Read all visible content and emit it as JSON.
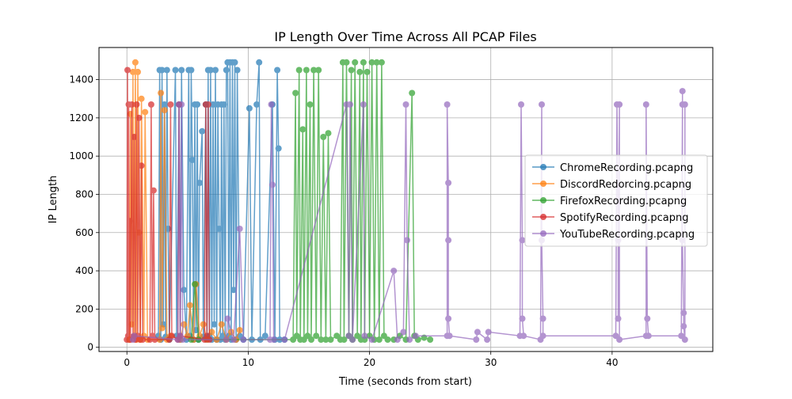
{
  "chart_data": {
    "type": "line",
    "title": "IP Length Over Time Across All PCAP Files",
    "xlabel": "Time (seconds from start)",
    "ylabel": "IP Length",
    "xlim": [
      -2.3,
      48.3
    ],
    "ylim": [
      -22,
      1568
    ],
    "x_ticks": [
      0,
      10,
      20,
      30,
      40
    ],
    "x_tick_labels": [
      "0",
      "10",
      "20",
      "30",
      "40"
    ],
    "y_ticks": [
      0,
      200,
      400,
      600,
      800,
      1000,
      1200,
      1400
    ],
    "y_tick_labels": [
      "0",
      "200",
      "400",
      "600",
      "800",
      "1000",
      "1200",
      "1400"
    ],
    "grid": true,
    "legend_position": "center-right",
    "series": [
      {
        "name": "ChromeRecording.pcapng",
        "color": "#1f77b4",
        "points": [
          [
            2.6,
            60
          ],
          [
            2.7,
            1450
          ],
          [
            2.8,
            40
          ],
          [
            2.9,
            1450
          ],
          [
            3.0,
            120
          ],
          [
            3.1,
            1270
          ],
          [
            3.2,
            55
          ],
          [
            3.3,
            1450
          ],
          [
            3.4,
            620
          ],
          [
            3.5,
            40
          ],
          [
            4.0,
            1450
          ],
          [
            4.1,
            60
          ],
          [
            4.3,
            1270
          ],
          [
            4.4,
            40
          ],
          [
            4.5,
            1450
          ],
          [
            4.7,
            300
          ],
          [
            4.9,
            40
          ],
          [
            5.1,
            1450
          ],
          [
            5.2,
            60
          ],
          [
            5.3,
            1450
          ],
          [
            5.4,
            980
          ],
          [
            5.5,
            40
          ],
          [
            5.6,
            1270
          ],
          [
            5.7,
            90
          ],
          [
            5.8,
            1270
          ],
          [
            5.9,
            40
          ],
          [
            6.0,
            860
          ],
          [
            6.2,
            1130
          ],
          [
            6.3,
            55
          ],
          [
            6.5,
            1270
          ],
          [
            6.6,
            40
          ],
          [
            6.7,
            1450
          ],
          [
            6.8,
            60
          ],
          [
            6.9,
            1450
          ],
          [
            7.0,
            40
          ],
          [
            7.1,
            1270
          ],
          [
            7.2,
            120
          ],
          [
            7.3,
            1450
          ],
          [
            7.4,
            40
          ],
          [
            7.5,
            1270
          ],
          [
            7.6,
            620
          ],
          [
            7.7,
            40
          ],
          [
            7.8,
            1270
          ],
          [
            7.9,
            60
          ],
          [
            8.0,
            1270
          ],
          [
            8.1,
            40
          ],
          [
            8.2,
            1450
          ],
          [
            8.3,
            1490
          ],
          [
            8.4,
            60
          ],
          [
            8.5,
            1490
          ],
          [
            8.6,
            40
          ],
          [
            8.7,
            1490
          ],
          [
            8.8,
            300
          ],
          [
            8.9,
            1490
          ],
          [
            9.0,
            40
          ],
          [
            9.1,
            1450
          ],
          [
            9.3,
            60
          ],
          [
            9.6,
            40
          ],
          [
            10.1,
            1250
          ],
          [
            10.3,
            40
          ],
          [
            10.7,
            1270
          ],
          [
            10.9,
            1490
          ],
          [
            11.0,
            40
          ],
          [
            11.4,
            60
          ],
          [
            12.0,
            1270
          ],
          [
            12.2,
            40
          ],
          [
            12.4,
            1450
          ],
          [
            12.5,
            1040
          ],
          [
            12.6,
            40
          ],
          [
            13.0,
            40
          ]
        ]
      },
      {
        "name": "DiscordRedorcing.pcapng",
        "color": "#ff7f0e",
        "points": [
          [
            0.2,
            40
          ],
          [
            0.3,
            1220
          ],
          [
            0.4,
            120
          ],
          [
            0.5,
            1440
          ],
          [
            0.6,
            60
          ],
          [
            0.7,
            1490
          ],
          [
            0.8,
            40
          ],
          [
            0.9,
            1440
          ],
          [
            1.0,
            600
          ],
          [
            1.1,
            40
          ],
          [
            1.2,
            1300
          ],
          [
            1.4,
            60
          ],
          [
            1.5,
            1230
          ],
          [
            1.7,
            40
          ],
          [
            2.7,
            40
          ],
          [
            2.8,
            1330
          ],
          [
            2.9,
            100
          ],
          [
            3.1,
            1240
          ],
          [
            3.3,
            40
          ],
          [
            3.6,
            60
          ],
          [
            4.4,
            40
          ],
          [
            4.7,
            120
          ],
          [
            5.0,
            60
          ],
          [
            5.2,
            220
          ],
          [
            5.5,
            40
          ],
          [
            5.7,
            330
          ],
          [
            6.0,
            60
          ],
          [
            6.3,
            120
          ],
          [
            6.6,
            40
          ],
          [
            7.0,
            80
          ],
          [
            7.4,
            40
          ],
          [
            7.8,
            120
          ],
          [
            8.2,
            40
          ],
          [
            8.6,
            80
          ],
          [
            9.0,
            40
          ],
          [
            9.3,
            90
          ]
        ]
      },
      {
        "name": "FirefoxRecording.pcapng",
        "color": "#2ca02c",
        "points": [
          [
            5.3,
            40
          ],
          [
            5.6,
            330
          ],
          [
            5.9,
            40
          ],
          [
            13.7,
            40
          ],
          [
            13.9,
            1330
          ],
          [
            14.0,
            60
          ],
          [
            14.2,
            1450
          ],
          [
            14.3,
            40
          ],
          [
            14.5,
            1140
          ],
          [
            14.6,
            40
          ],
          [
            14.8,
            1450
          ],
          [
            14.9,
            60
          ],
          [
            15.1,
            1270
          ],
          [
            15.2,
            40
          ],
          [
            15.4,
            1450
          ],
          [
            15.6,
            60
          ],
          [
            15.8,
            1450
          ],
          [
            16.0,
            40
          ],
          [
            16.2,
            1100
          ],
          [
            16.4,
            40
          ],
          [
            16.6,
            1120
          ],
          [
            16.8,
            40
          ],
          [
            17.3,
            60
          ],
          [
            17.6,
            40
          ],
          [
            17.8,
            1490
          ],
          [
            17.9,
            40
          ],
          [
            18.1,
            1490
          ],
          [
            18.3,
            60
          ],
          [
            18.5,
            1450
          ],
          [
            18.6,
            40
          ],
          [
            18.8,
            1490
          ],
          [
            19.0,
            60
          ],
          [
            19.2,
            1440
          ],
          [
            19.3,
            40
          ],
          [
            19.5,
            1490
          ],
          [
            19.6,
            40
          ],
          [
            19.8,
            1440
          ],
          [
            20.0,
            60
          ],
          [
            20.2,
            1490
          ],
          [
            20.4,
            40
          ],
          [
            20.6,
            1490
          ],
          [
            20.8,
            40
          ],
          [
            21.0,
            1490
          ],
          [
            21.2,
            60
          ],
          [
            21.5,
            40
          ],
          [
            22.0,
            40
          ],
          [
            22.5,
            60
          ],
          [
            23.0,
            40
          ],
          [
            23.5,
            1330
          ],
          [
            23.7,
            60
          ],
          [
            24.0,
            40
          ],
          [
            24.5,
            50
          ],
          [
            25.0,
            40
          ]
        ]
      },
      {
        "name": "SpotifyRecording.pcapng",
        "color": "#d62728",
        "points": [
          [
            0.0,
            40
          ],
          [
            0.05,
            1450
          ],
          [
            0.1,
            60
          ],
          [
            0.15,
            1270
          ],
          [
            0.2,
            40
          ],
          [
            0.25,
            660
          ],
          [
            0.3,
            40
          ],
          [
            0.4,
            1270
          ],
          [
            0.5,
            55
          ],
          [
            0.6,
            1100
          ],
          [
            0.7,
            40
          ],
          [
            0.8,
            1270
          ],
          [
            0.9,
            60
          ],
          [
            1.0,
            1200
          ],
          [
            1.1,
            40
          ],
          [
            1.2,
            950
          ],
          [
            1.3,
            40
          ],
          [
            1.9,
            40
          ],
          [
            2.0,
            1270
          ],
          [
            2.1,
            60
          ],
          [
            2.2,
            820
          ],
          [
            2.3,
            40
          ],
          [
            3.5,
            40
          ],
          [
            3.6,
            1270
          ],
          [
            3.7,
            60
          ],
          [
            4.2,
            40
          ],
          [
            4.3,
            1270
          ],
          [
            4.4,
            60
          ],
          [
            6.4,
            40
          ],
          [
            6.5,
            1270
          ],
          [
            6.6,
            60
          ],
          [
            6.7,
            1270
          ],
          [
            6.8,
            40
          ]
        ]
      },
      {
        "name": "YouTubeRecording.pcapng",
        "color": "#9467bd",
        "points": [
          [
            0.5,
            40
          ],
          [
            0.6,
            60
          ],
          [
            4.2,
            40
          ],
          [
            4.3,
            1270
          ],
          [
            4.4,
            60
          ],
          [
            4.5,
            1270
          ],
          [
            4.6,
            40
          ],
          [
            8.2,
            40
          ],
          [
            8.3,
            150
          ],
          [
            8.8,
            40
          ],
          [
            9.3,
            620
          ],
          [
            9.6,
            40
          ],
          [
            11.8,
            40
          ],
          [
            11.9,
            1270
          ],
          [
            12.0,
            850
          ],
          [
            12.1,
            40
          ],
          [
            13.0,
            40
          ],
          [
            18.1,
            1270
          ],
          [
            18.3,
            60
          ],
          [
            18.4,
            1270
          ],
          [
            18.6,
            40
          ],
          [
            19.5,
            1270
          ],
          [
            19.6,
            60
          ],
          [
            20.2,
            40
          ],
          [
            22.0,
            400
          ],
          [
            22.3,
            40
          ],
          [
            22.8,
            80
          ],
          [
            23.0,
            1270
          ],
          [
            23.1,
            560
          ],
          [
            23.3,
            40
          ],
          [
            23.8,
            60
          ],
          [
            26.4,
            60
          ],
          [
            26.4,
            1270
          ],
          [
            26.5,
            860
          ],
          [
            26.5,
            560
          ],
          [
            26.5,
            150
          ],
          [
            26.6,
            60
          ],
          [
            28.8,
            40
          ],
          [
            28.9,
            80
          ],
          [
            29.7,
            40
          ],
          [
            29.8,
            80
          ],
          [
            32.4,
            60
          ],
          [
            32.5,
            1270
          ],
          [
            32.6,
            560
          ],
          [
            32.6,
            150
          ],
          [
            32.7,
            60
          ],
          [
            34.1,
            40
          ],
          [
            34.2,
            1270
          ],
          [
            34.2,
            560
          ],
          [
            34.3,
            150
          ],
          [
            34.3,
            60
          ],
          [
            40.3,
            60
          ],
          [
            40.4,
            1270
          ],
          [
            40.5,
            560
          ],
          [
            40.5,
            150
          ],
          [
            40.6,
            1270
          ],
          [
            40.6,
            40
          ],
          [
            42.8,
            60
          ],
          [
            42.8,
            1270
          ],
          [
            42.9,
            150
          ],
          [
            43.0,
            60
          ],
          [
            45.7,
            60
          ],
          [
            45.8,
            1270
          ],
          [
            45.8,
            1340
          ],
          [
            45.8,
            560
          ],
          [
            45.9,
            180
          ],
          [
            45.9,
            110
          ],
          [
            46.0,
            40
          ],
          [
            46.0,
            1270
          ]
        ]
      }
    ]
  }
}
